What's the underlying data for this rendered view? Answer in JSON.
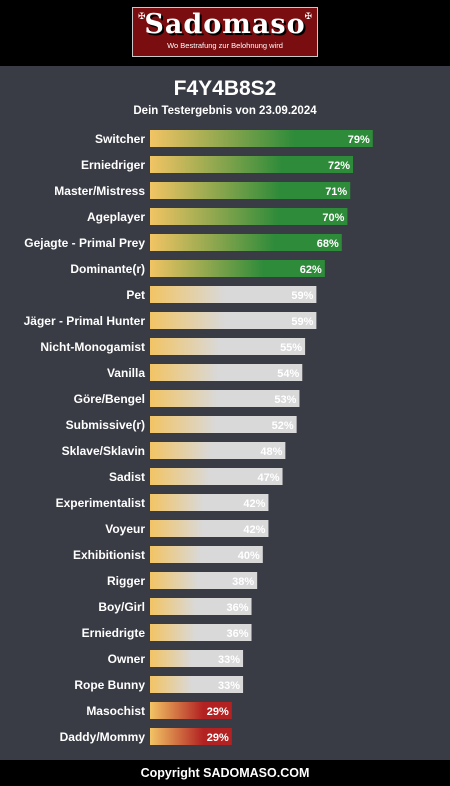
{
  "header": {
    "logo_text": "Sadomaso",
    "logo_tagline": "Wo Bestrafung zur Belohnung wird"
  },
  "result": {
    "code": "F4Y4B8S2",
    "subtitle": "Dein Testergebnis von 23.09.2024"
  },
  "footer": {
    "copyright": "Copyright SADOMASO.COM"
  },
  "colors": {
    "background": "#393c44",
    "bar_start": "#f2c464",
    "bar_high": "#2e8b3a",
    "bar_mid": "#d9d9d9",
    "bar_low": "#b22222"
  },
  "chart_data": {
    "type": "bar",
    "orientation": "horizontal",
    "title": "",
    "xlabel": "",
    "ylabel": "",
    "xlim": [
      0,
      100
    ],
    "grid": false,
    "categories": [
      "Switcher",
      "Erniedriger",
      "Master/Mistress",
      "Ageplayer",
      "Gejagte - Primal Prey",
      "Dominante(r)",
      "Pet",
      "Jäger - Primal Hunter",
      "Nicht-Monogamist",
      "Vanilla",
      "Göre/Bengel",
      "Submissive(r)",
      "Sklave/Sklavin",
      "Sadist",
      "Experimentalist",
      "Voyeur",
      "Exhibitionist",
      "Rigger",
      "Boy/Girl",
      "Erniedrigte",
      "Owner",
      "Rope Bunny",
      "Masochist",
      "Daddy/Mommy"
    ],
    "values": [
      79,
      72,
      71,
      70,
      68,
      62,
      59,
      59,
      55,
      54,
      53,
      52,
      48,
      47,
      42,
      42,
      40,
      38,
      36,
      36,
      33,
      33,
      29,
      29
    ],
    "value_labels": [
      "79%",
      "72%",
      "71%",
      "70%",
      "68%",
      "62%",
      "59%",
      "59%",
      "55%",
      "54%",
      "53%",
      "52%",
      "48%",
      "47%",
      "42%",
      "42%",
      "40%",
      "38%",
      "36%",
      "36%",
      "33%",
      "33%",
      "29%",
      "29%"
    ],
    "tiers": [
      "high",
      "high",
      "high",
      "high",
      "high",
      "high",
      "mid",
      "mid",
      "mid",
      "mid",
      "mid",
      "mid",
      "mid",
      "mid",
      "mid",
      "mid",
      "mid",
      "mid",
      "mid",
      "mid",
      "mid",
      "mid",
      "low",
      "low"
    ]
  }
}
